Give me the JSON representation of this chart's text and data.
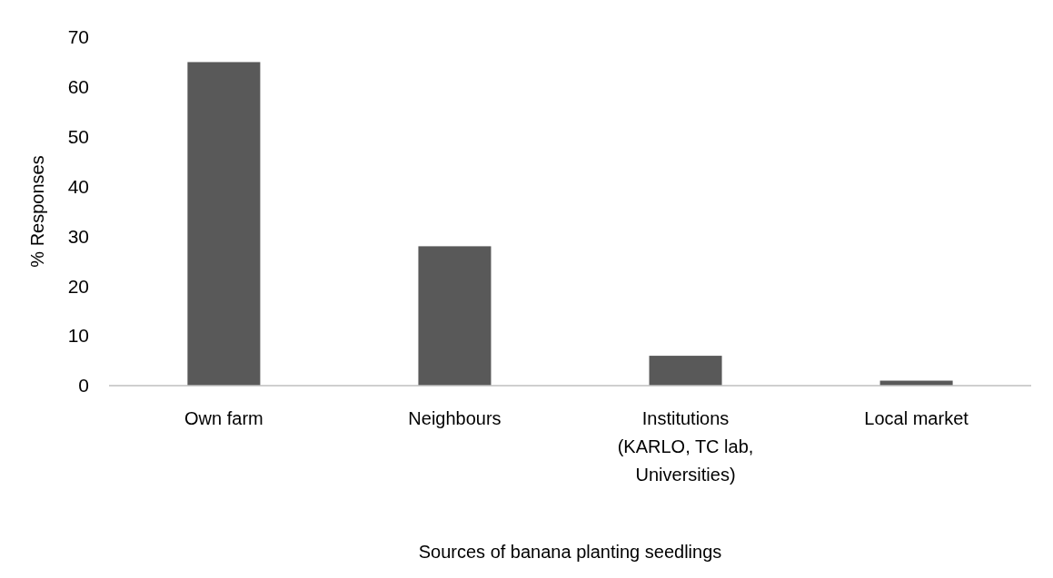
{
  "chart_data": {
    "type": "bar",
    "xlabel": "Sources of banana planting seedlings",
    "ylabel": "% Responses",
    "categories": [
      "Own farm",
      "Neighbours",
      "Institutions (KARLO, TC lab, Universities)",
      "Local market"
    ],
    "values": [
      65,
      28,
      6,
      1
    ],
    "color": "#595959",
    "ylim": [
      0,
      70
    ],
    "yticks": [
      0,
      10,
      20,
      30,
      40,
      50,
      60,
      70
    ],
    "grid": false
  }
}
